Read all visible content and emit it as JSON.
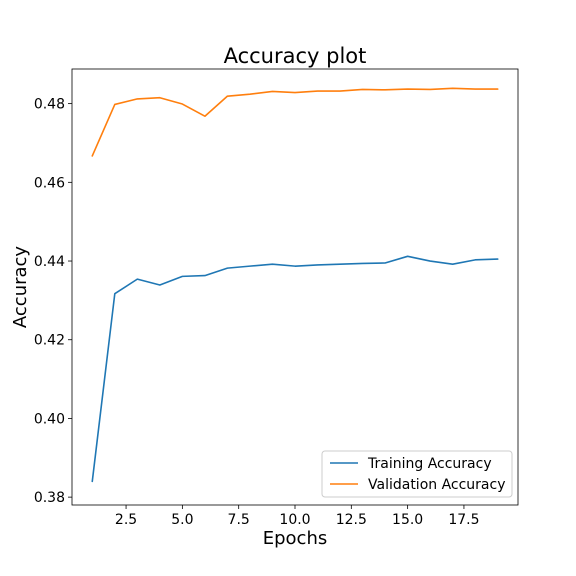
{
  "chart_data": {
    "type": "line",
    "title": "Accuracy plot",
    "xlabel": "Epochs",
    "ylabel": "Accuracy",
    "xlim": [
      0.1,
      19.9
    ],
    "ylim": [
      0.378,
      0.4888
    ],
    "x_ticks": [
      2.5,
      5.0,
      7.5,
      10.0,
      12.5,
      15.0,
      17.5
    ],
    "x_tick_labels": [
      "2.5",
      "5.0",
      "7.5",
      "10.0",
      "12.5",
      "15.0",
      "17.5"
    ],
    "y_ticks": [
      0.38,
      0.4,
      0.42,
      0.44,
      0.46,
      0.48
    ],
    "y_tick_labels": [
      "0.38",
      "0.40",
      "0.42",
      "0.44",
      "0.46",
      "0.48"
    ],
    "grid": false,
    "legend_position": "lower-right",
    "x": [
      1,
      2,
      3,
      4,
      5,
      6,
      7,
      8,
      9,
      10,
      11,
      12,
      13,
      14,
      15,
      16,
      17,
      18,
      19
    ],
    "series": [
      {
        "name": "Training Accuracy",
        "color": "#1f77b4",
        "values": [
          0.384,
          0.4317,
          0.4354,
          0.4339,
          0.4361,
          0.4363,
          0.4382,
          0.4387,
          0.4392,
          0.4387,
          0.439,
          0.4392,
          0.4394,
          0.4395,
          0.4412,
          0.44,
          0.4392,
          0.4403,
          0.4405
        ]
      },
      {
        "name": "Validation Accuracy",
        "color": "#ff7f0e",
        "values": [
          0.4667,
          0.4798,
          0.4812,
          0.4815,
          0.4799,
          0.4768,
          0.4819,
          0.4824,
          0.4831,
          0.4828,
          0.4832,
          0.4832,
          0.4836,
          0.4835,
          0.4837,
          0.4836,
          0.4839,
          0.4837,
          0.4837
        ]
      }
    ]
  }
}
